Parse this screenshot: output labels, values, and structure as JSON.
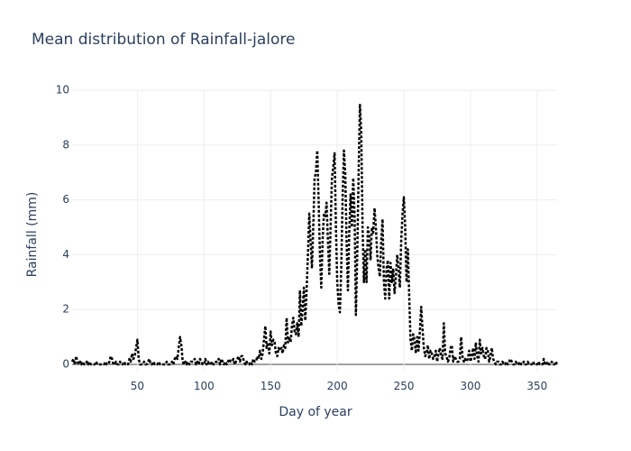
{
  "chart_data": {
    "type": "line",
    "title": "Mean distribution of Rainfall-jalore",
    "x_label": "Day of year",
    "y_label": "Rainfall (mm)",
    "color": "#000000",
    "line_style": "dotted",
    "grid": true,
    "xlim": [
      1,
      365
    ],
    "ylim": [
      -0.25,
      10
    ],
    "xticks": [
      50,
      100,
      150,
      200,
      250,
      300,
      350
    ],
    "yticks": [
      0,
      2,
      4,
      6,
      8,
      10
    ],
    "x": [
      1,
      2,
      3,
      4,
      5,
      6,
      7,
      8,
      9,
      10,
      11,
      12,
      13,
      14,
      15,
      16,
      17,
      18,
      19,
      20,
      21,
      22,
      23,
      24,
      25,
      26,
      27,
      28,
      29,
      30,
      31,
      32,
      33,
      34,
      35,
      36,
      37,
      38,
      39,
      40,
      41,
      42,
      43,
      44,
      45,
      46,
      47,
      48,
      49,
      50,
      51,
      52,
      53,
      54,
      55,
      56,
      57,
      58,
      59,
      60,
      61,
      62,
      63,
      64,
      65,
      66,
      67,
      68,
      69,
      70,
      71,
      72,
      73,
      74,
      75,
      76,
      77,
      78,
      79,
      80,
      81,
      82,
      83,
      84,
      85,
      86,
      87,
      88,
      89,
      90,
      91,
      92,
      93,
      94,
      95,
      96,
      97,
      98,
      99,
      100,
      101,
      102,
      103,
      104,
      105,
      106,
      107,
      108,
      109,
      110,
      111,
      112,
      113,
      114,
      115,
      116,
      117,
      118,
      119,
      120,
      121,
      122,
      123,
      124,
      125,
      126,
      127,
      128,
      129,
      130,
      131,
      132,
      133,
      134,
      135,
      136,
      137,
      138,
      139,
      140,
      141,
      142,
      143,
      144,
      145,
      146,
      147,
      148,
      149,
      150,
      151,
      152,
      153,
      154,
      155,
      156,
      157,
      158,
      159,
      160,
      161,
      162,
      163,
      164,
      165,
      166,
      167,
      168,
      169,
      170,
      171,
      172,
      173,
      174,
      175,
      176,
      177,
      178,
      179,
      180,
      181,
      182,
      183,
      184,
      185,
      186,
      187,
      188,
      189,
      190,
      191,
      192,
      193,
      194,
      195,
      196,
      197,
      198,
      199,
      200,
      201,
      202,
      203,
      204,
      205,
      206,
      207,
      208,
      209,
      210,
      211,
      212,
      213,
      214,
      215,
      216,
      217,
      218,
      219,
      220,
      221,
      222,
      223,
      224,
      225,
      226,
      227,
      228,
      229,
      230,
      231,
      232,
      233,
      234,
      235,
      236,
      237,
      238,
      239,
      240,
      241,
      242,
      243,
      244,
      245,
      246,
      247,
      248,
      249,
      250,
      251,
      252,
      253,
      254,
      255,
      256,
      257,
      258,
      259,
      260,
      261,
      262,
      263,
      264,
      265,
      266,
      267,
      268,
      269,
      270,
      271,
      272,
      273,
      274,
      275,
      276,
      277,
      278,
      279,
      280,
      281,
      282,
      283,
      284,
      285,
      286,
      287,
      288,
      289,
      290,
      291,
      292,
      293,
      294,
      295,
      296,
      297,
      298,
      299,
      300,
      301,
      302,
      303,
      304,
      305,
      306,
      307,
      308,
      309,
      310,
      311,
      312,
      313,
      314,
      315,
      316,
      317,
      318,
      319,
      320,
      321,
      322,
      323,
      324,
      325,
      326,
      327,
      328,
      329,
      330,
      331,
      332,
      333,
      334,
      335,
      336,
      337,
      338,
      339,
      340,
      341,
      342,
      343,
      344,
      345,
      346,
      347,
      348,
      349,
      350,
      351,
      352,
      353,
      354,
      355,
      356,
      357,
      358,
      359,
      360,
      361,
      362,
      363,
      364,
      365
    ],
    "values": [
      0.1,
      0.2,
      0,
      0.3,
      0.1,
      0,
      0.1,
      0,
      0.1,
      0,
      0,
      0.1,
      0,
      0.1,
      0,
      0,
      0,
      0,
      0.1,
      0,
      0,
      0,
      0,
      0,
      0,
      0.1,
      0,
      0,
      0.1,
      0.3,
      0.2,
      0,
      0,
      0.1,
      0,
      0,
      0.1,
      0,
      0,
      0.1,
      0,
      0,
      0,
      0.2,
      0.1,
      0.4,
      0.2,
      0.3,
      0.6,
      0.9,
      0.2,
      0,
      0,
      0,
      0.1,
      0,
      0,
      0.1,
      0.2,
      0,
      0,
      0.1,
      0,
      0,
      0,
      0.1,
      0,
      0,
      0,
      0,
      0,
      0.1,
      0,
      0,
      0,
      0.1,
      0,
      0.2,
      0.3,
      0.2,
      0.6,
      1.0,
      0.7,
      0.1,
      0,
      0.1,
      0,
      0.1,
      0,
      0.1,
      0.1,
      0.1,
      0.2,
      0,
      0.1,
      0,
      0.2,
      0.1,
      0,
      0,
      0.2,
      0,
      0.1,
      0,
      0,
      0.1,
      0,
      0,
      0.1,
      0.1,
      0.2,
      0,
      0.2,
      0.1,
      0,
      0.1,
      0,
      0.1,
      0.2,
      0.1,
      0.1,
      0.2,
      0,
      0.1,
      0.2,
      0.3,
      0.1,
      0.3,
      0.3,
      0.1,
      0,
      0.1,
      0,
      0,
      0.1,
      0,
      0.2,
      0.1,
      0.1,
      0.3,
      0.2,
      0.5,
      0.2,
      0.4,
      0.9,
      1.4,
      0.6,
      0.8,
      0.4,
      1.2,
      0.7,
      0.9,
      0.8,
      0.4,
      0.3,
      0.6,
      0.5,
      0.6,
      0.4,
      0.7,
      0.6,
      1.7,
      0.8,
      1.0,
      0.8,
      1.4,
      1.7,
      1.2,
      1.1,
      1.5,
      1.0,
      2.7,
      1.4,
      2.0,
      2.8,
      1.6,
      2.7,
      4.0,
      5.5,
      4.5,
      3.5,
      5.0,
      6.8,
      7.0,
      7.8,
      6.0,
      4.0,
      2.8,
      4.5,
      5.5,
      5.4,
      5.9,
      4.5,
      3.3,
      5.0,
      6.8,
      7.2,
      7.7,
      5.0,
      3.0,
      2.2,
      1.9,
      3.5,
      6.0,
      7.8,
      7.0,
      4.5,
      2.7,
      4.8,
      6.2,
      5.0,
      6.8,
      5.5,
      1.8,
      4.0,
      6.8,
      9.5,
      8.5,
      5.0,
      3.0,
      4.2,
      3.0,
      5.0,
      4.7,
      3.8,
      5.0,
      4.8,
      5.7,
      5.0,
      4.0,
      3.5,
      3.2,
      4.5,
      5.3,
      3.0,
      2.4,
      3.5,
      3.8,
      2.4,
      3.7,
      3.0,
      3.5,
      2.6,
      3.2,
      4.0,
      3.5,
      2.8,
      4.5,
      5.5,
      6.1,
      5.0,
      3.0,
      4.2,
      2.5,
      0.9,
      0.5,
      1.1,
      0.9,
      0.4,
      1.0,
      0.5,
      1.2,
      2.1,
      1.3,
      0.6,
      0.3,
      0.4,
      0.7,
      0.2,
      0.5,
      0.4,
      0.2,
      0.3,
      0.5,
      0.1,
      0.4,
      0.6,
      0.3,
      0.2,
      1.5,
      0.4,
      0.3,
      0.1,
      0.2,
      0.6,
      0.7,
      0.1,
      0.3,
      0.2,
      0.1,
      0.1,
      0.2,
      1.0,
      0.3,
      0.1,
      0.2,
      0.1,
      0.2,
      0.5,
      0.1,
      0.3,
      0.6,
      0.2,
      0.8,
      0.3,
      0.1,
      0.9,
      0.4,
      0.6,
      0.3,
      0.2,
      0.6,
      0.5,
      0.1,
      0.3,
      0.6,
      0.2,
      0.1,
      0,
      0.1,
      0.1,
      0,
      0,
      0.1,
      0,
      0,
      0.1,
      0,
      0.1,
      0.2,
      0.1,
      0,
      0,
      0.1,
      0,
      0,
      0.1,
      0,
      0,
      0.1,
      0,
      0,
      0.1,
      0,
      0,
      0,
      0.1,
      0,
      0,
      0,
      0.1,
      0,
      0,
      0,
      0.2,
      0,
      0,
      0.1,
      0,
      0,
      0.1,
      0,
      0,
      0.1,
      0
    ]
  }
}
